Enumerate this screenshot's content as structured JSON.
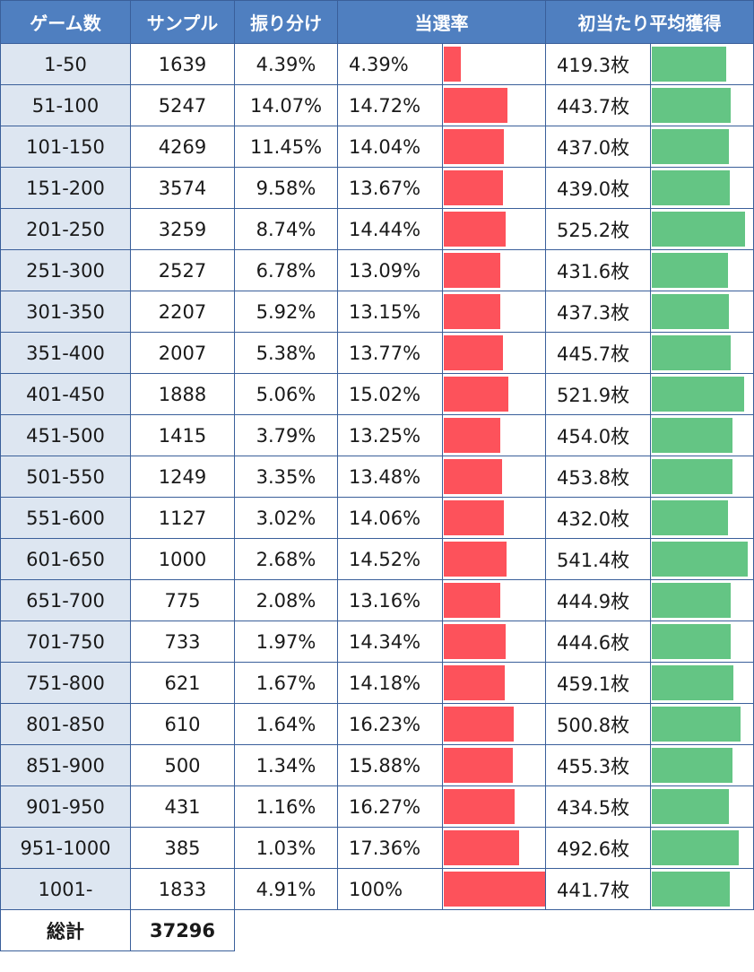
{
  "chart_data": {
    "type": "table",
    "headers": {
      "range": "ゲーム数",
      "samples": "サンプル",
      "share": "振り分け",
      "rate": "当選率",
      "avg": "初当たり平均獲得"
    },
    "rows": [
      {
        "range": "1-50",
        "samples": "1639",
        "share": "4.39%",
        "rate": "4.39%",
        "rate_value": 4.39,
        "avg": "419.3枚",
        "avg_value": 419.3
      },
      {
        "range": "51-100",
        "samples": "5247",
        "share": "14.07%",
        "rate": "14.72%",
        "rate_value": 14.72,
        "avg": "443.7枚",
        "avg_value": 443.7
      },
      {
        "range": "101-150",
        "samples": "4269",
        "share": "11.45%",
        "rate": "14.04%",
        "rate_value": 14.04,
        "avg": "437.0枚",
        "avg_value": 437.0
      },
      {
        "range": "151-200",
        "samples": "3574",
        "share": "9.58%",
        "rate": "13.67%",
        "rate_value": 13.67,
        "avg": "439.0枚",
        "avg_value": 439.0
      },
      {
        "range": "201-250",
        "samples": "3259",
        "share": "8.74%",
        "rate": "14.44%",
        "rate_value": 14.44,
        "avg": "525.2枚",
        "avg_value": 525.2
      },
      {
        "range": "251-300",
        "samples": "2527",
        "share": "6.78%",
        "rate": "13.09%",
        "rate_value": 13.09,
        "avg": "431.6枚",
        "avg_value": 431.6
      },
      {
        "range": "301-350",
        "samples": "2207",
        "share": "5.92%",
        "rate": "13.15%",
        "rate_value": 13.15,
        "avg": "437.3枚",
        "avg_value": 437.3
      },
      {
        "range": "351-400",
        "samples": "2007",
        "share": "5.38%",
        "rate": "13.77%",
        "rate_value": 13.77,
        "avg": "445.7枚",
        "avg_value": 445.7
      },
      {
        "range": "401-450",
        "samples": "1888",
        "share": "5.06%",
        "rate": "15.02%",
        "rate_value": 15.02,
        "avg": "521.9枚",
        "avg_value": 521.9
      },
      {
        "range": "451-500",
        "samples": "1415",
        "share": "3.79%",
        "rate": "13.25%",
        "rate_value": 13.25,
        "avg": "454.0枚",
        "avg_value": 454.0
      },
      {
        "range": "501-550",
        "samples": "1249",
        "share": "3.35%",
        "rate": "13.48%",
        "rate_value": 13.48,
        "avg": "453.8枚",
        "avg_value": 453.8
      },
      {
        "range": "551-600",
        "samples": "1127",
        "share": "3.02%",
        "rate": "14.06%",
        "rate_value": 14.06,
        "avg": "432.0枚",
        "avg_value": 432.0
      },
      {
        "range": "601-650",
        "samples": "1000",
        "share": "2.68%",
        "rate": "14.52%",
        "rate_value": 14.52,
        "avg": "541.4枚",
        "avg_value": 541.4
      },
      {
        "range": "651-700",
        "samples": "775",
        "share": "2.08%",
        "rate": "13.16%",
        "rate_value": 13.16,
        "avg": "444.9枚",
        "avg_value": 444.9
      },
      {
        "range": "701-750",
        "samples": "733",
        "share": "1.97%",
        "rate": "14.34%",
        "rate_value": 14.34,
        "avg": "444.6枚",
        "avg_value": 444.6
      },
      {
        "range": "751-800",
        "samples": "621",
        "share": "1.67%",
        "rate": "14.18%",
        "rate_value": 14.18,
        "avg": "459.1枚",
        "avg_value": 459.1
      },
      {
        "range": "801-850",
        "samples": "610",
        "share": "1.64%",
        "rate": "16.23%",
        "rate_value": 16.23,
        "avg": "500.8枚",
        "avg_value": 500.8
      },
      {
        "range": "851-900",
        "samples": "500",
        "share": "1.34%",
        "rate": "15.88%",
        "rate_value": 15.88,
        "avg": "455.3枚",
        "avg_value": 455.3
      },
      {
        "range": "901-950",
        "samples": "431",
        "share": "1.16%",
        "rate": "16.27%",
        "rate_value": 16.27,
        "avg": "434.5枚",
        "avg_value": 434.5
      },
      {
        "range": "951-1000",
        "samples": "385",
        "share": "1.03%",
        "rate": "17.36%",
        "rate_value": 17.36,
        "avg": "492.6枚",
        "avg_value": 492.6
      },
      {
        "range": "1001-",
        "samples": "1833",
        "share": "4.91%",
        "rate": "100%",
        "rate_value": 100,
        "avg": "441.7枚",
        "avg_value": 441.7
      }
    ],
    "total": {
      "label": "総計",
      "value": "37296"
    },
    "bar_colors": {
      "rate": "#fd525b",
      "avg": "#64c584"
    }
  }
}
